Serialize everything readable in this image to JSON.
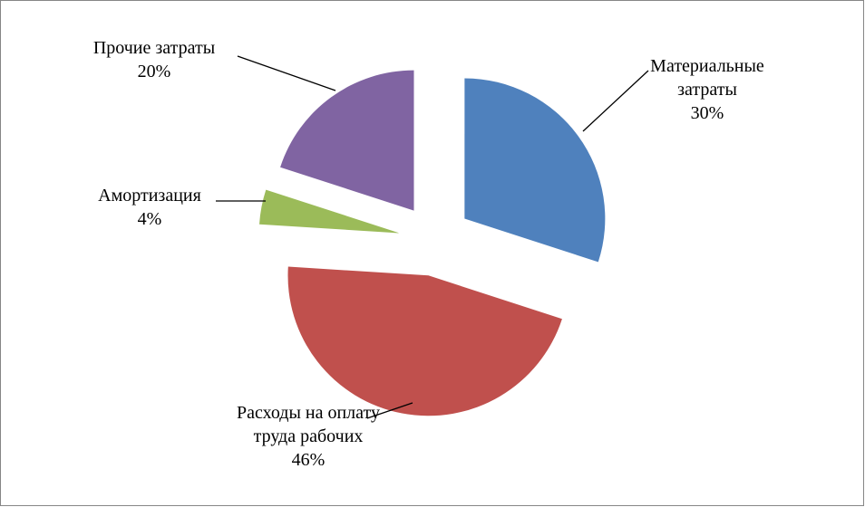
{
  "chart_data": {
    "type": "pie",
    "categories": [
      "Материальные затраты",
      "Расходы на оплату труда рабочих",
      "Амортизация",
      "Прочие затраты"
    ],
    "values": [
      30,
      46,
      4,
      20
    ],
    "value_labels": [
      "30%",
      "46%",
      "4%",
      "20%"
    ],
    "colors": [
      "#4f81bd",
      "#c0504d",
      "#9bbb59",
      "#8064a2"
    ]
  }
}
